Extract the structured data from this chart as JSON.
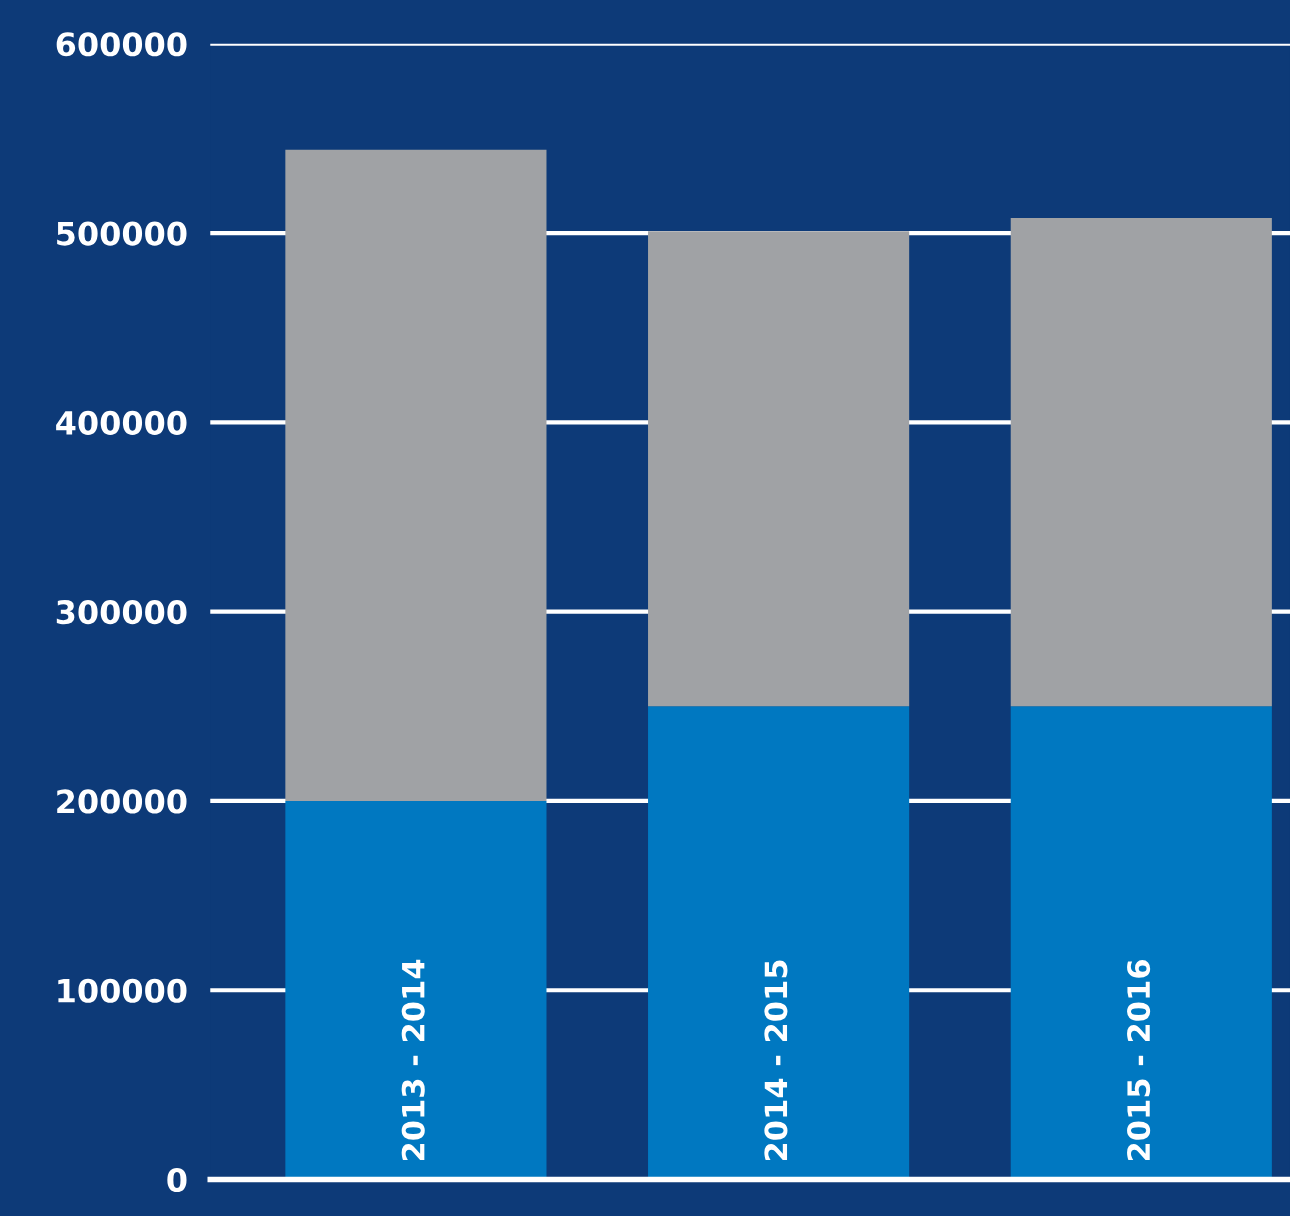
{
  "chart_data": {
    "type": "bar",
    "stacked": true,
    "categories": [
      "2013 - 2014",
      "2014 - 2015",
      "2015 - 2016"
    ],
    "series": [
      {
        "color": "#0078c1",
        "values": [
          200000,
          250000,
          250000
        ]
      },
      {
        "color": "#a0a2a5",
        "values": [
          344000,
          251000,
          258000
        ]
      }
    ],
    "ylim": [
      0,
      600000
    ],
    "yticks": [
      0,
      100000,
      200000,
      300000,
      400000,
      500000,
      600000
    ],
    "grid": "y",
    "legend": false
  }
}
